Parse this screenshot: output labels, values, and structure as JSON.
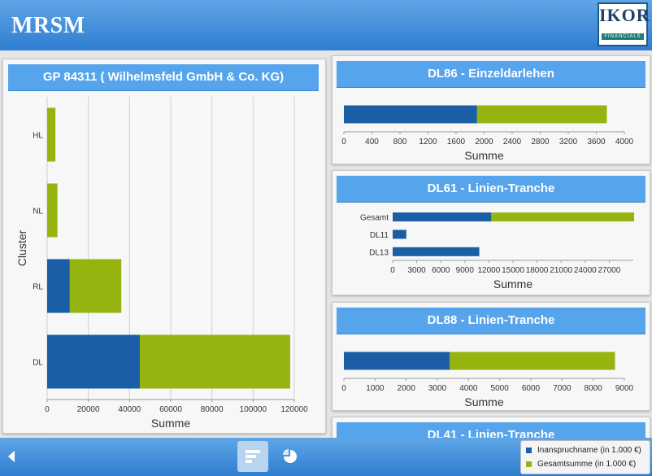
{
  "app": {
    "brand": "MRSM",
    "logo_text": "IKOR",
    "logo_sub": "FINANCIALS"
  },
  "colors": {
    "inanspruchname": "#1a5fa5",
    "gesamtsumme": "#96b410",
    "title_bg": "#56a4ec"
  },
  "panels": [
    {
      "title": "GP 84311 ( Wilhelmsfeld GmbH & Co. KG)"
    },
    {
      "title": "DL86 - Einzeldarlehen"
    },
    {
      "title": "DL61 - Linien-Tranche"
    },
    {
      "title": "DL88 - Linien-Tranche"
    },
    {
      "title": "DL41 - Linien-Tranche"
    }
  ],
  "legend": [
    {
      "label": "Inanspruchname (in 1.000 €)",
      "color": "#1a5fa5"
    },
    {
      "label": "Gesamtsumme (in 1.000 €)",
      "color": "#96b410"
    }
  ],
  "footer": {
    "back_icon": "back-arrow-icon",
    "bar_icon": "bar-chart-icon",
    "pie_icon": "pie-chart-icon"
  },
  "chart_data": [
    {
      "type": "bar",
      "orientation": "horizontal",
      "stacked": true,
      "title": "GP 84311 ( Wilhelmsfeld GmbH & Co. KG)",
      "xlabel": "Summe",
      "ylabel": "Cluster",
      "categories": [
        "HL",
        "NL",
        "RL",
        "DL"
      ],
      "series": [
        {
          "name": "Inanspruchname (in 1.000 €)",
          "values": [
            0,
            0,
            11000,
            45000
          ]
        },
        {
          "name": "Gesamtsumme (in 1.000 €)",
          "values": [
            4000,
            5000,
            25000,
            73000
          ]
        }
      ],
      "xticks": [
        "0",
        "20000",
        "40000",
        "60000",
        "80000",
        "100000",
        "120000"
      ],
      "xlim": [
        0,
        120000
      ],
      "grid": true
    },
    {
      "type": "bar",
      "orientation": "horizontal",
      "stacked": true,
      "title": "DL86 - Einzeldarlehen",
      "xlabel": "Summe",
      "categories": [
        ""
      ],
      "series": [
        {
          "name": "Inanspruchname (in 1.000 €)",
          "values": [
            1900
          ]
        },
        {
          "name": "Gesamtsumme (in 1.000 €)",
          "values": [
            1850
          ]
        }
      ],
      "xticks": [
        "0",
        "400",
        "800",
        "1200",
        "1600",
        "2000",
        "2400",
        "2800",
        "3200",
        "3600",
        "4000"
      ],
      "xlim": [
        0,
        4000
      ]
    },
    {
      "type": "bar",
      "orientation": "horizontal",
      "stacked": true,
      "title": "DL61 - Linien-Tranche",
      "xlabel": "Summe",
      "categories": [
        "Gesamt",
        "DL11",
        "DL13"
      ],
      "series": [
        {
          "name": "Inanspruchname (in 1.000 €)",
          "values": [
            12300,
            1700,
            10800
          ]
        },
        {
          "name": "Gesamtsumme (in 1.000 €)",
          "values": [
            17800,
            0,
            0
          ]
        }
      ],
      "xticks": [
        "0",
        "3000",
        "6000",
        "9000",
        "12000",
        "15000",
        "18000",
        "21000",
        "24000",
        "27000"
      ],
      "xlim": [
        0,
        30000
      ]
    },
    {
      "type": "bar",
      "orientation": "horizontal",
      "stacked": true,
      "title": "DL88 - Linien-Tranche",
      "xlabel": "Summe",
      "categories": [
        ""
      ],
      "series": [
        {
          "name": "Inanspruchname (in 1.000 €)",
          "values": [
            3400
          ]
        },
        {
          "name": "Gesamtsumme (in 1.000 €)",
          "values": [
            5300
          ]
        }
      ],
      "xticks": [
        "0",
        "1000",
        "2000",
        "3000",
        "4000",
        "5000",
        "6000",
        "7000",
        "8000",
        "9000"
      ],
      "xlim": [
        0,
        9000
      ]
    }
  ]
}
